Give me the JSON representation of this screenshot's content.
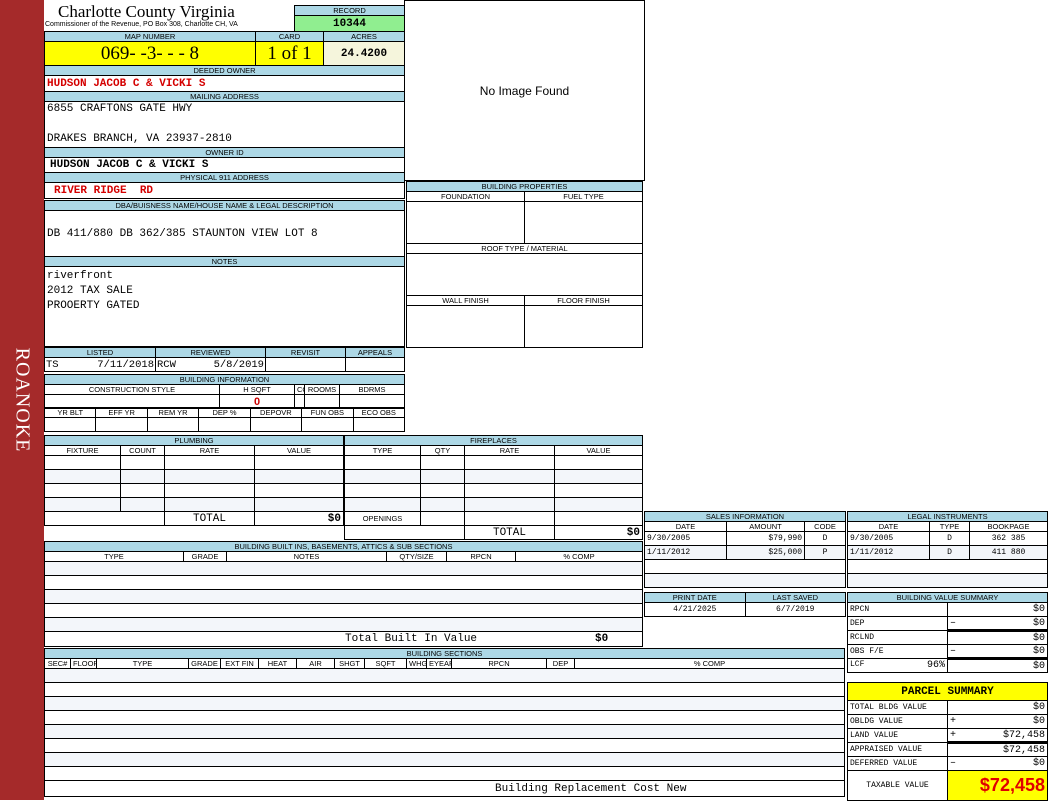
{
  "sidebar": {
    "label": "ROANOKE",
    "color": "#a52a2a"
  },
  "header": {
    "title": "Charlotte County Virginia",
    "subtitle": "Commissioner of the Revenue, PO Box 308, Charlotte CH, VA",
    "record_label": "RECORD",
    "record": "10344"
  },
  "parcel": {
    "map_label": "MAP NUMBER",
    "map": "069- -3- - - 8",
    "card_label": "CARD",
    "card": "1 of 1",
    "acres_label": "ACRES",
    "acres": "24.4200"
  },
  "owner": {
    "deeded_label": "DEEDED OWNER",
    "deeded": "HUDSON JACOB C & VICKI S",
    "mailing_label": "MAILING ADDRESS",
    "mail1": "6855 CRAFTONS GATE HWY",
    "mail2": "DRAKES BRANCH, VA 23937-2810",
    "id_label": "OWNER ID",
    "id": "HUDSON JACOB C & VICKI S",
    "phys_label": "PHYSICAL 911 ADDRESS",
    "phys": "RIVER RIDGE  RD"
  },
  "image": {
    "text": "No Image Found"
  },
  "dba": {
    "label": "DBA/BUISNESS NAME/HOUSE NAME & LEGAL DESCRIPTION",
    "text": "DB 411/880 DB 362/385 STAUNTON VIEW LOT 8"
  },
  "notes": {
    "label": "NOTES",
    "lines": [
      "riverfront",
      "2012 TAX SALE",
      "PROOERTY GATED"
    ]
  },
  "review": {
    "listed_label": "LISTED",
    "listed_by": "TS",
    "listed": "7/11/2018",
    "reviewed_label": "REVIEWED",
    "reviewed_by": "RCW",
    "reviewed": "5/8/2019",
    "revisit_label": "REVISIT",
    "appeals_label": "APPEALS"
  },
  "building_info": {
    "label": "BUILDING INFORMATION",
    "cols1": [
      "CONSTRUCTION STYLE",
      "H SQFT",
      "COND",
      "ROOMS",
      "BDRMS"
    ],
    "hsqft": "0",
    "cols2": [
      "YR BLT",
      "EFF YR",
      "REM YR",
      "DEP %",
      "DEPOVR",
      "FUN OBS",
      "ECO OBS"
    ]
  },
  "building_props": {
    "label": "BUILDING PROPERTIES",
    "foundation": "FOUNDATION",
    "fuel": "FUEL TYPE",
    "roof": "ROOF TYPE / MATERIAL",
    "wall": "WALL FINISH",
    "floor": "FLOOR FINISH"
  },
  "plumbing": {
    "label": "PLUMBING",
    "cols": [
      "FIXTURE",
      "COUNT",
      "RATE",
      "VALUE"
    ],
    "total_label": "TOTAL",
    "total": "$0"
  },
  "fireplaces": {
    "label": "FIREPLACES",
    "cols": [
      "TYPE",
      "QTY",
      "RATE",
      "VALUE"
    ],
    "openings": "OPENINGS",
    "total_label": "TOTAL",
    "total": "$0"
  },
  "builtins": {
    "label": "BUILDING BUILT INS, BASEMENTS, ATTICS & SUB SECTIONS",
    "cols": [
      "TYPE",
      "GRADE",
      "NOTES",
      "QTY/SIZE",
      "RPCN",
      "% COMP"
    ],
    "total_label": "Total Built In Value",
    "total": "$0"
  },
  "sections": {
    "label": "BUILDING SECTIONS",
    "cols": [
      "SEC#",
      "FLOOR",
      "TYPE",
      "GRADE",
      "EXT FIN",
      "HEAT",
      "AIR",
      "SHGT",
      "SQFT",
      "WHGT",
      "EYEAR",
      "RPCN",
      "DEP",
      "% COMP"
    ],
    "footer": "Building Replacement Cost New"
  },
  "sales": {
    "label": "SALES INFORMATION",
    "cols": [
      "DATE",
      "AMOUNT",
      "CODE"
    ],
    "rows": [
      [
        "9/30/2005",
        "$79,990",
        "D"
      ],
      [
        "1/11/2012",
        "$25,000",
        "P"
      ]
    ]
  },
  "legal": {
    "label": "LEGAL INSTRUMENTS",
    "cols": [
      "DATE",
      "TYPE",
      "BOOKPAGE"
    ],
    "rows": [
      [
        "9/30/2005",
        "D",
        "362 385"
      ],
      [
        "1/11/2012",
        "D",
        "411 880"
      ]
    ]
  },
  "dates": {
    "print_label": "PRINT DATE",
    "print": "4/21/2025",
    "saved_label": "LAST SAVED",
    "saved": "6/7/2019"
  },
  "bvs": {
    "label": "BUILDING VALUE SUMMARY",
    "rows": [
      [
        "RPCN",
        "",
        "",
        "$0"
      ],
      [
        "DEP",
        "",
        "–",
        "$0"
      ],
      [
        "RCLND",
        "",
        "",
        "$0"
      ],
      [
        "OBS F/E",
        "",
        "–",
        "$0"
      ],
      [
        "LCF",
        "96%",
        "",
        "$0"
      ]
    ]
  },
  "summary": {
    "label": "PARCEL SUMMARY",
    "rows": [
      [
        "TOTAL BLDG VALUE",
        "",
        "$0"
      ],
      [
        "OBLDG VALUE",
        "+",
        "$0"
      ],
      [
        "LAND VALUE",
        "+",
        "$72,458"
      ],
      [
        "APPRAISED VALUE",
        "",
        "$72,458"
      ],
      [
        "DEFERRED VALUE",
        "–",
        "$0"
      ]
    ],
    "taxable_label": "TAXABLE VALUE",
    "taxable": "$72,458"
  }
}
